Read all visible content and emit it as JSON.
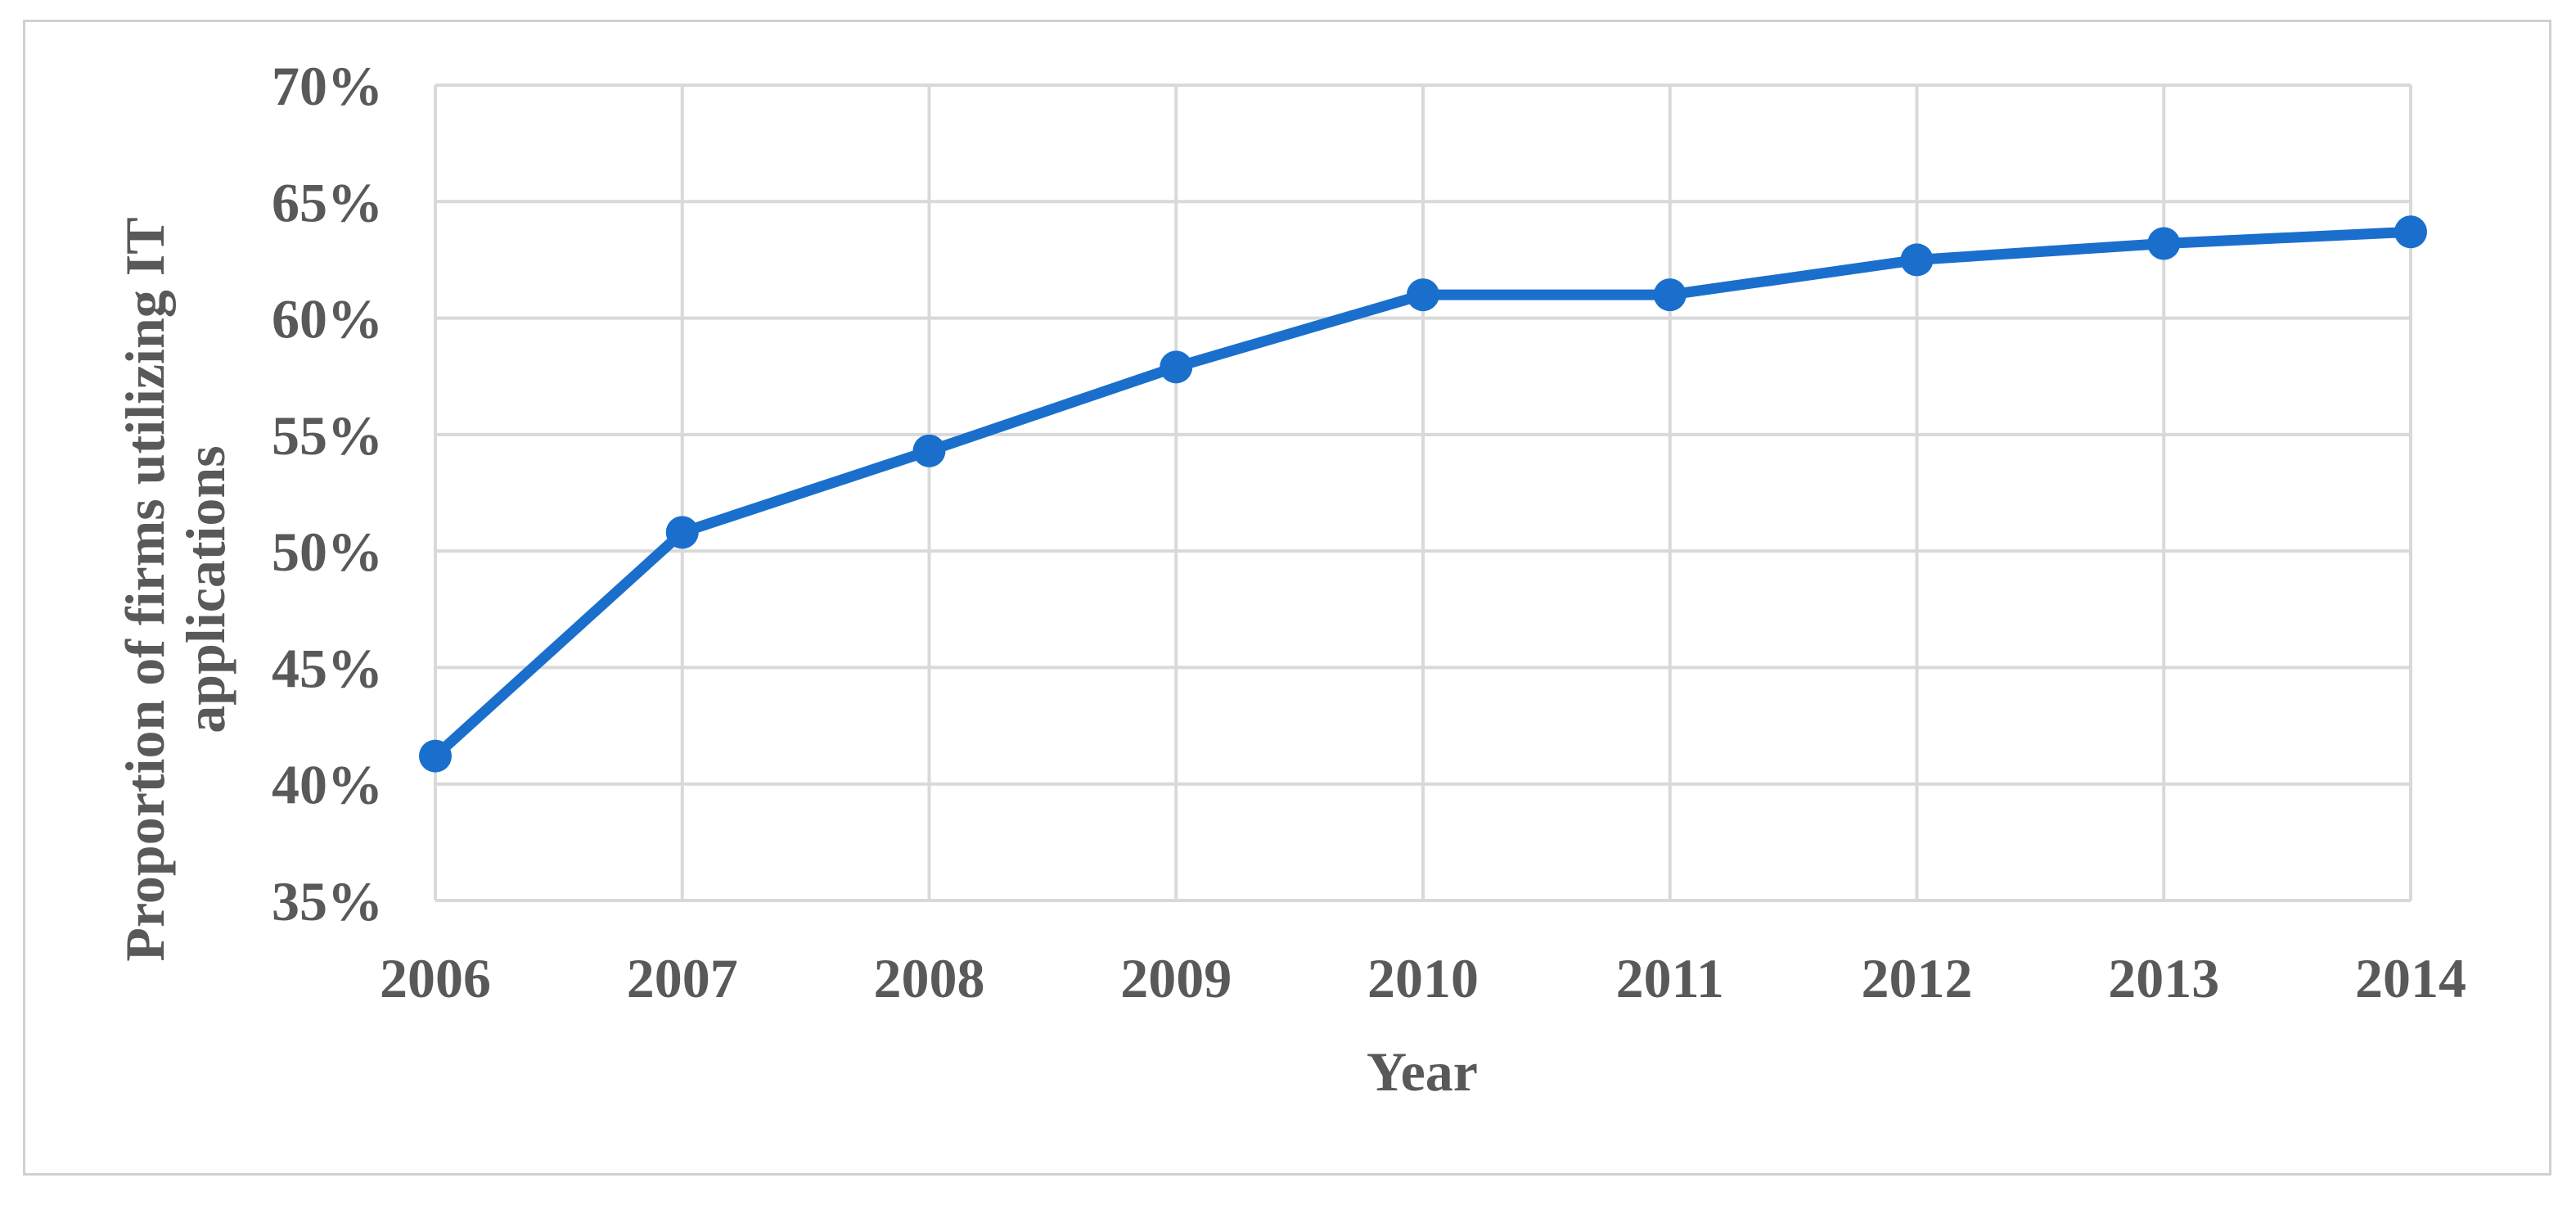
{
  "chart_data": {
    "type": "line",
    "x": [
      "2006",
      "2007",
      "2008",
      "2009",
      "2010",
      "2011",
      "2012",
      "2013",
      "2014"
    ],
    "series": [
      {
        "values": [
          41.2,
          50.8,
          54.3,
          57.9,
          61.0,
          61.0,
          62.5,
          63.2,
          63.7
        ]
      }
    ],
    "y_tick_labels": [
      "35%",
      "40%",
      "45%",
      "50%",
      "55%",
      "60%",
      "65%",
      "70%"
    ],
    "ylim": [
      35,
      70
    ],
    "xlabel": "Year",
    "ylabel_lines": [
      "Proportion of firms utilizing IT",
      "applications"
    ],
    "grid": true,
    "legend": "none",
    "colors": {
      "line": "#1a6fcc",
      "grid": "#d9d9d9",
      "text": "#595959",
      "frame": "#d0d0d0"
    }
  }
}
